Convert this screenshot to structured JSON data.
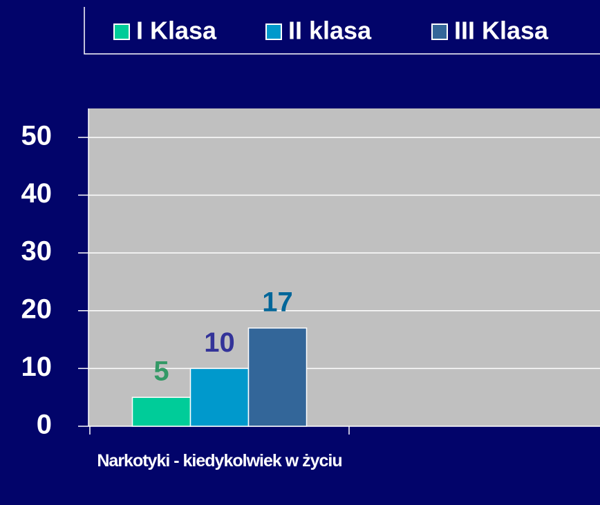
{
  "chart_data": {
    "type": "bar",
    "categories": [
      "Narkotyki - kiedykolwiek w życiu"
    ],
    "series": [
      {
        "name": "I Klasa",
        "color": "#00cc99",
        "label_color": "#339966",
        "values": [
          5
        ]
      },
      {
        "name": "II klasa",
        "color": "#0099cc",
        "label_color": "#333399",
        "values": [
          10
        ]
      },
      {
        "name": "III Klasa",
        "color": "#336699",
        "label_color": "#006699",
        "values": [
          17
        ]
      }
    ],
    "ylim": [
      0,
      55
    ],
    "yticks": [
      0,
      10,
      20,
      30,
      40,
      50
    ],
    "grid": true,
    "legend": "top"
  }
}
